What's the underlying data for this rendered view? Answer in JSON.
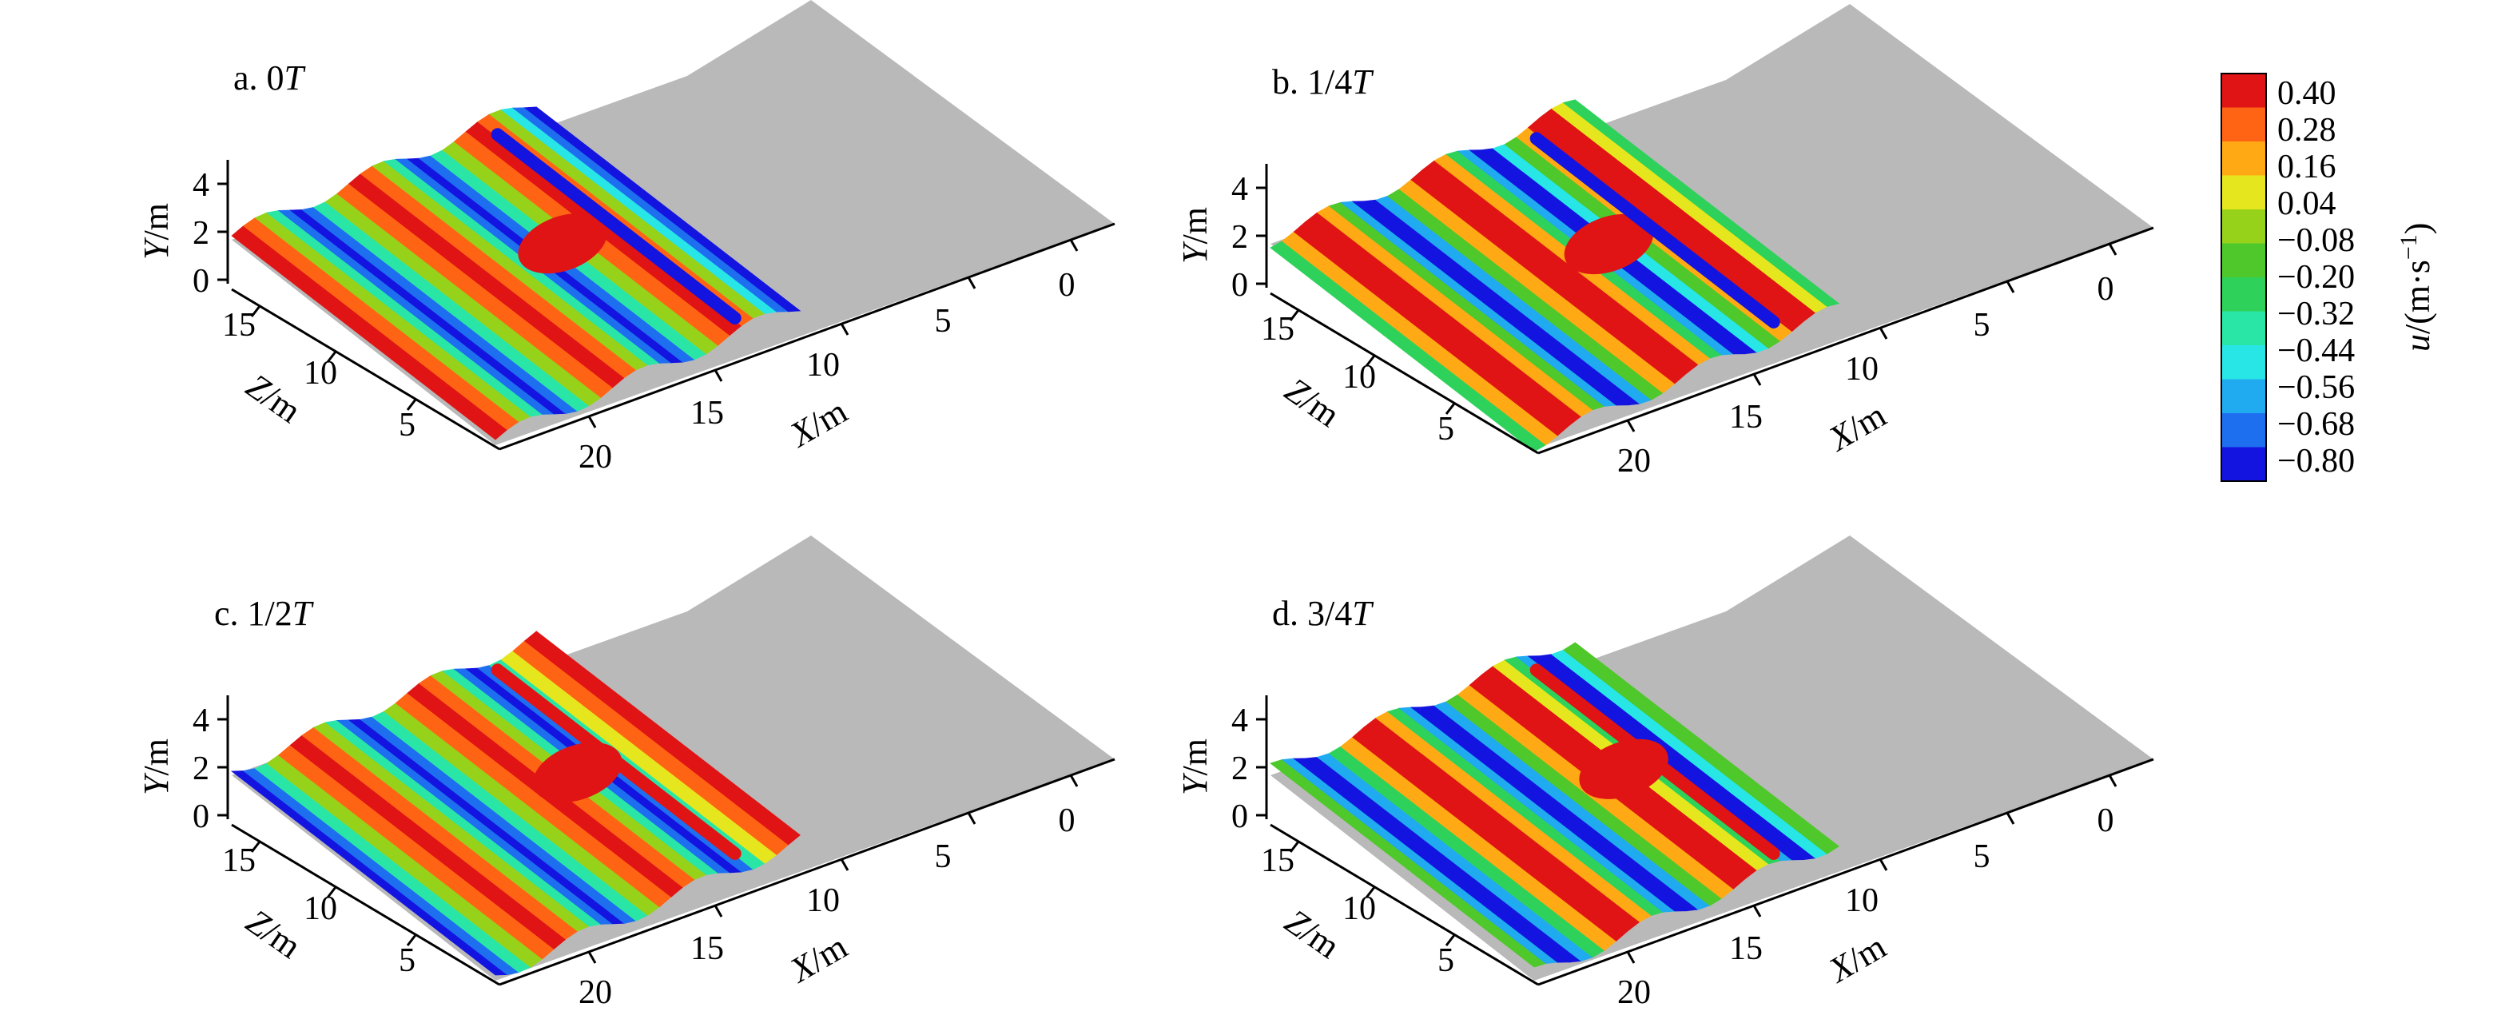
{
  "colors": {
    "background": "#ffffff",
    "floor": "#b9b9b9",
    "palette": [
      "#1414e0",
      "#1e6ef0",
      "#20aaf0",
      "#28e6e6",
      "#2ae6a6",
      "#2ed25a",
      "#4ec82a",
      "#96d21a",
      "#e6e61e",
      "#ffaa14",
      "#ff6414",
      "#e01414"
    ]
  },
  "colorbar": {
    "label_var": "u",
    "label_units": "/(m·s",
    "label_exp": "−1",
    "label_close": ")",
    "ticks": [
      "0.40",
      "0.28",
      "0.16",
      "0.04",
      "−0.08",
      "−0.20",
      "−0.32",
      "−0.44",
      "−0.56",
      "−0.68",
      "−0.80"
    ]
  },
  "axes": {
    "y_var": "Y",
    "y_unit": "/m",
    "z_var": "Z",
    "z_unit": "/m",
    "x_var": "X",
    "x_unit": "/m",
    "y_ticks": [
      "4",
      "2",
      "0"
    ],
    "z_ticks": [
      "15",
      "10",
      "5"
    ],
    "x_ticks": [
      "0",
      "5",
      "10",
      "15",
      "20"
    ]
  },
  "panels": [
    {
      "prefix": "a. 0",
      "var": "T",
      "phase": 0
    },
    {
      "prefix": "b. 1/4",
      "var": "T",
      "phase": 0.25
    },
    {
      "prefix": "c. 1/2",
      "var": "T",
      "phase": 0.5
    },
    {
      "prefix": "d. 3/4",
      "var": "T",
      "phase": 0.75
    }
  ],
  "chart_data": {
    "type": "heatmap",
    "subtype": "3d-surface",
    "series": [
      {
        "name": "a. 0T",
        "phase_fraction": 0
      },
      {
        "name": "b. 1/4T",
        "phase_fraction": 0.25
      },
      {
        "name": "c. 1/2T",
        "phase_fraction": 0.5
      },
      {
        "name": "d. 3/4T",
        "phase_fraction": 0.75
      }
    ],
    "x_range_m": [
      0,
      20
    ],
    "y_range_m": [
      0,
      4
    ],
    "z_range_m": [
      5,
      15
    ],
    "color_range": [
      -0.8,
      0.4
    ],
    "colorbar_levels": [
      0.4,
      0.28,
      0.16,
      0.04,
      -0.08,
      -0.2,
      -0.32,
      -0.44,
      -0.56,
      -0.68,
      -0.8
    ]
  }
}
